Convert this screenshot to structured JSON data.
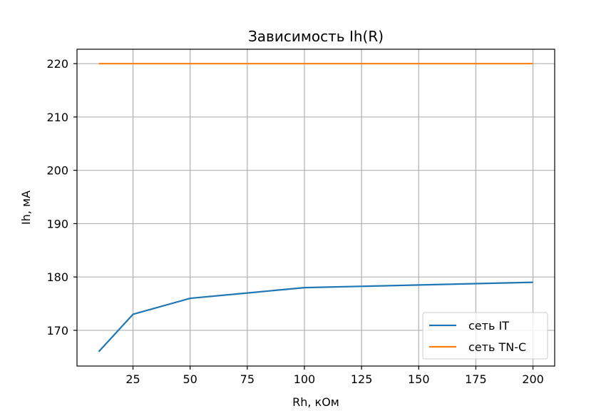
{
  "chart_data": {
    "type": "line",
    "title": "Зависимость Ih(R)",
    "xlabel": "Rh, кОм",
    "ylabel": "Ih, мА",
    "xlim": [
      0.5,
      209.5
    ],
    "ylim": [
      163.3,
      222.7
    ],
    "xticks": [
      25,
      50,
      75,
      100,
      125,
      150,
      175,
      200
    ],
    "yticks": [
      170,
      180,
      190,
      200,
      210,
      220
    ],
    "grid": true,
    "legend_position": "lower right",
    "series": [
      {
        "name": "сеть IT",
        "color": "#1f77b4",
        "x": [
          10,
          25,
          50,
          75,
          100,
          200
        ],
        "y": [
          166,
          173,
          176,
          177,
          178,
          179
        ]
      },
      {
        "name": "сеть TN-C",
        "color": "#ff7f0e",
        "x": [
          10,
          25,
          50,
          75,
          100,
          200
        ],
        "y": [
          220,
          220,
          220,
          220,
          220,
          220
        ]
      }
    ]
  }
}
